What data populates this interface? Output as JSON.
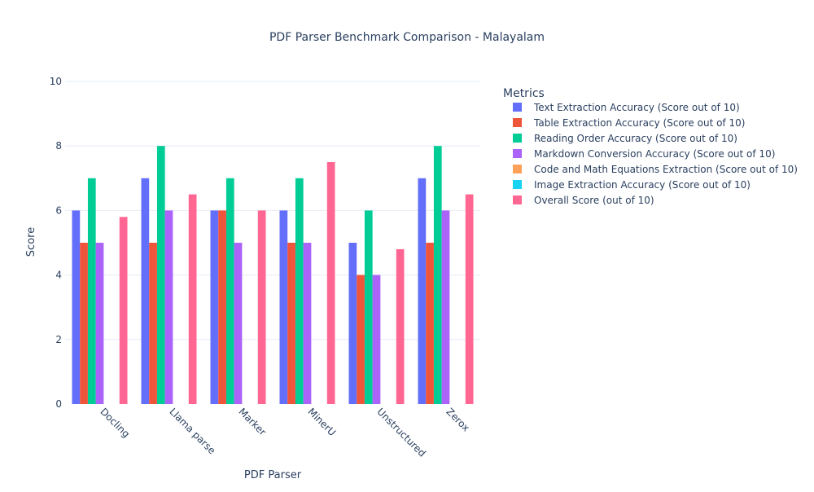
{
  "chart_data": {
    "type": "bar",
    "title": "PDF Parser Benchmark Comparison - Malayalam",
    "xlabel": "PDF Parser",
    "ylabel": "Score",
    "ylim": [
      0,
      10
    ],
    "yticks": [
      0,
      2,
      4,
      6,
      8,
      10
    ],
    "grid": true,
    "legend_title": "Metrics",
    "legend_position": "right",
    "categories": [
      "Docling",
      "Llama parse",
      "Marker",
      "MinerU",
      "Unstructured",
      "Zerox"
    ],
    "series": [
      {
        "name": "Text Extraction Accuracy (Score out of 10)",
        "color": "#636efa",
        "values": [
          6,
          7,
          6,
          6,
          5,
          7
        ]
      },
      {
        "name": "Table Extraction Accuracy (Score out of 10)",
        "color": "#ef553b",
        "values": [
          5,
          5,
          6,
          5,
          4,
          5
        ]
      },
      {
        "name": "Reading Order Accuracy (Score out of 10)",
        "color": "#00cc96",
        "values": [
          7,
          8,
          7,
          7,
          6,
          8
        ]
      },
      {
        "name": "Markdown Conversion Accuracy (Score out of 10)",
        "color": "#ab63fa",
        "values": [
          5,
          6,
          5,
          5,
          4,
          6
        ]
      },
      {
        "name": "Code and Math Equations Extraction (Score out of 10)",
        "color": "#ffa15a",
        "values": [
          0,
          0,
          0,
          0,
          0,
          0
        ]
      },
      {
        "name": "Image Extraction Accuracy (Score out of 10)",
        "color": "#19d3f3",
        "values": [
          0,
          0,
          0,
          0,
          0,
          0
        ]
      },
      {
        "name": "Overall Score (out of 10)",
        "color": "#ff6692",
        "values": [
          5.8,
          6.5,
          6.0,
          7.5,
          4.8,
          6.5
        ]
      }
    ]
  }
}
